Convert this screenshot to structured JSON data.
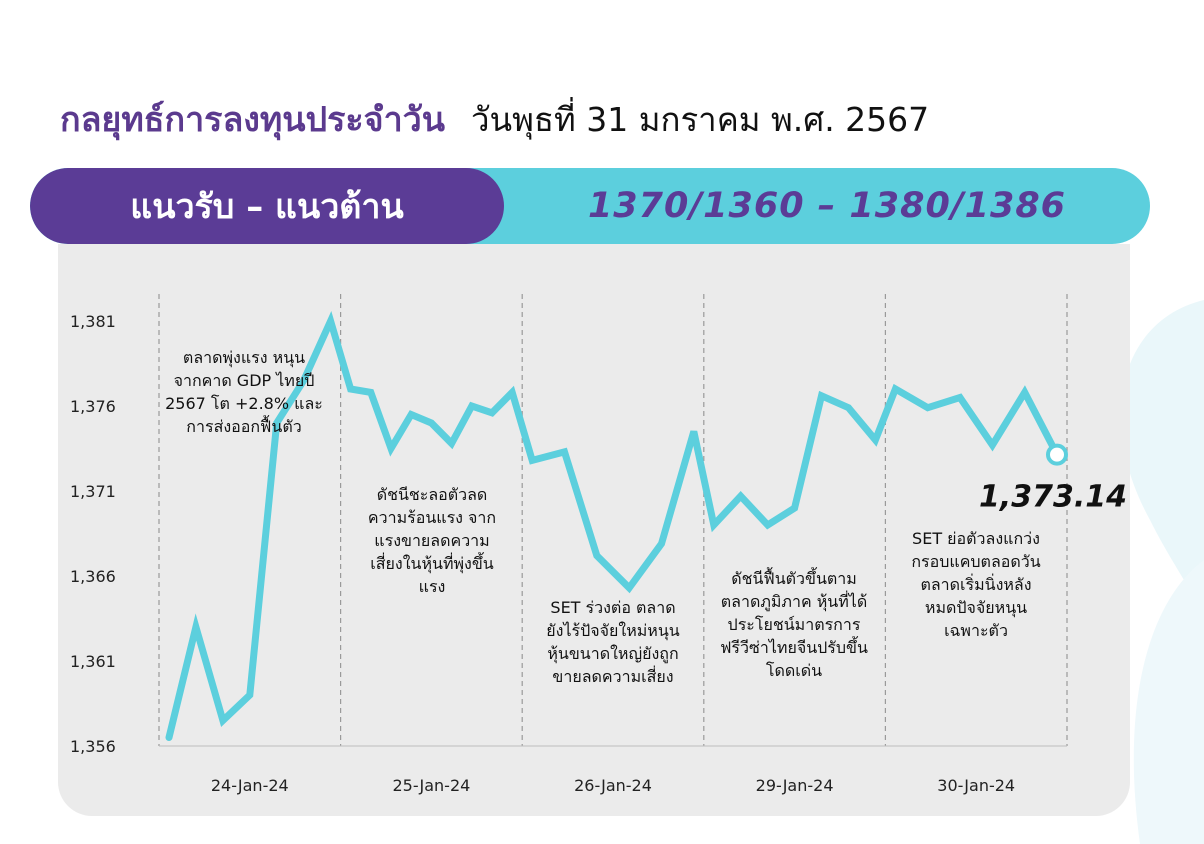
{
  "header": {
    "title": "กลยุทธ์การลงทุนประจำวัน",
    "date": "วันพุธที่ 31 มกราคม พ.ศ. 2567"
  },
  "levels": {
    "label": "แนวรับ – แนวต้าน",
    "value": "1370/1360 – 1380/1386"
  },
  "colors": {
    "purple": "#5b3c96",
    "cyan": "#5ccfdd",
    "line": "#5ccfdd",
    "panel": "#ebebeb"
  },
  "chart_data": {
    "type": "line",
    "title": "",
    "xlabel": "",
    "ylabel": "",
    "ylim": [
      1356,
      1382
    ],
    "yticks": [
      1356,
      1361,
      1366,
      1371,
      1376,
      1381
    ],
    "ytick_labels": [
      "1,356",
      "1,361",
      "1,366",
      "1,371",
      "1,376",
      "1,381"
    ],
    "grid": false,
    "days": [
      "24-Jan-24",
      "25-Jan-24",
      "26-Jan-24",
      "29-Jan-24",
      "30-Jan-24"
    ],
    "series": [
      {
        "values": [
          [
            1356.5,
            1363.0,
            1357.5,
            1359.0,
            1375.0,
            1377.5,
            1381.0
          ],
          [
            1377.0,
            1376.8,
            1373.5,
            1375.5,
            1375.0,
            1373.8,
            1376.0,
            1375.6,
            1376.8
          ],
          [
            1372.8,
            1373.3,
            1367.2,
            1365.3,
            1367.9,
            1374.5
          ],
          [
            1369.0,
            1370.7,
            1369.0,
            1370.0,
            1376.6,
            1375.9,
            1374.0
          ],
          [
            1377.0,
            1375.9,
            1376.5,
            1373.7,
            1376.8,
            1373.14
          ]
        ]
      }
    ],
    "last_value_label": "1,373.14",
    "annotations": [
      [
        "ตลาดพุ่งแรง หนุน",
        "จากคาด GDP ไทยปี",
        "2567 โต +2.8% และ",
        "การส่งออกฟื้นตัว"
      ],
      [
        "ดัชนีชะลอตัวลด",
        "ความร้อนแรง จาก",
        "แรงขายลดความ",
        "เสี่ยงในหุ้นที่พุ่งขึ้น",
        "แรง"
      ],
      [
        "SET ร่วงต่อ ตลาด",
        "ยังไร้ปัจจัยใหม่หนุน",
        "หุ้นขนาดใหญ่ยังถูก",
        "ขายลดความเสี่ยง"
      ],
      [
        "ดัชนีฟื้นตัวขึ้นตาม",
        "ตลาดภูมิภาค หุ้นที่ได้",
        "ประโยชน์มาตรการ",
        "ฟรีวีซ่าไทยจีนปรับขึ้น",
        "โดดเด่น"
      ],
      [
        "SET ย่อตัวลงแกว่ง",
        "กรอบแคบตลอดวัน",
        "ตลาดเริ่มนิ่งหลัง",
        "หมดปัจจัยหนุน",
        "เฉพาะตัว"
      ]
    ]
  }
}
